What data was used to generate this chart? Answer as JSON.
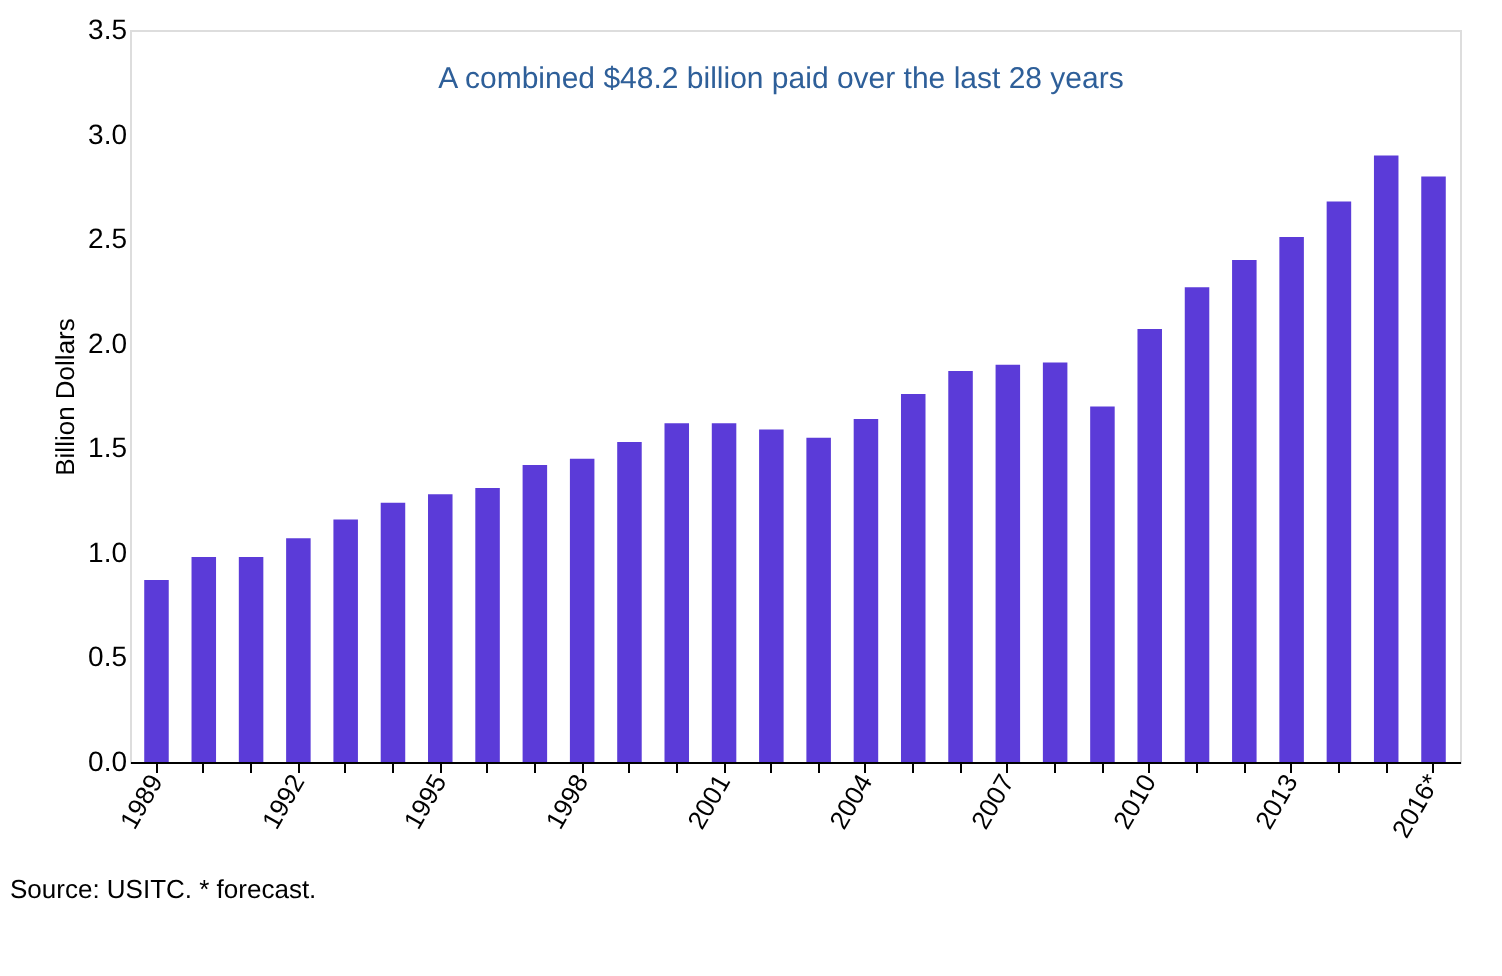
{
  "chart_data": {
    "type": "bar",
    "categories": [
      "1989",
      null,
      null,
      "1992",
      null,
      null,
      "1995",
      null,
      null,
      "1998",
      null,
      null,
      "2001",
      null,
      null,
      "2004",
      null,
      null,
      "2007",
      null,
      null,
      "2010",
      null,
      null,
      "2013",
      null,
      null,
      "2016*"
    ],
    "values": [
      0.87,
      0.98,
      0.98,
      1.07,
      1.16,
      1.24,
      1.28,
      1.31,
      1.42,
      1.45,
      1.53,
      1.62,
      1.62,
      1.59,
      1.55,
      1.64,
      1.76,
      1.87,
      1.9,
      1.91,
      1.7,
      2.07,
      2.27,
      2.4,
      2.51,
      2.68,
      2.9,
      2.8
    ],
    "color": "#5b3bd8",
    "ylabel": "Billion Dollars",
    "ylim": [
      0,
      3.5
    ],
    "yticks": [
      {
        "value": 0,
        "label": "0.0"
      },
      0.5,
      {
        "value": 1,
        "label": "1.0"
      },
      1.5,
      {
        "value": 2,
        "label": "2.0"
      },
      2.5,
      {
        "value": 3,
        "label": "3.0"
      },
      3.5
    ],
    "grid": false,
    "annotations": [
      "A combined $48.2 billion paid over the last 28 years",
      "Source:  USITC.  * forecast."
    ]
  }
}
